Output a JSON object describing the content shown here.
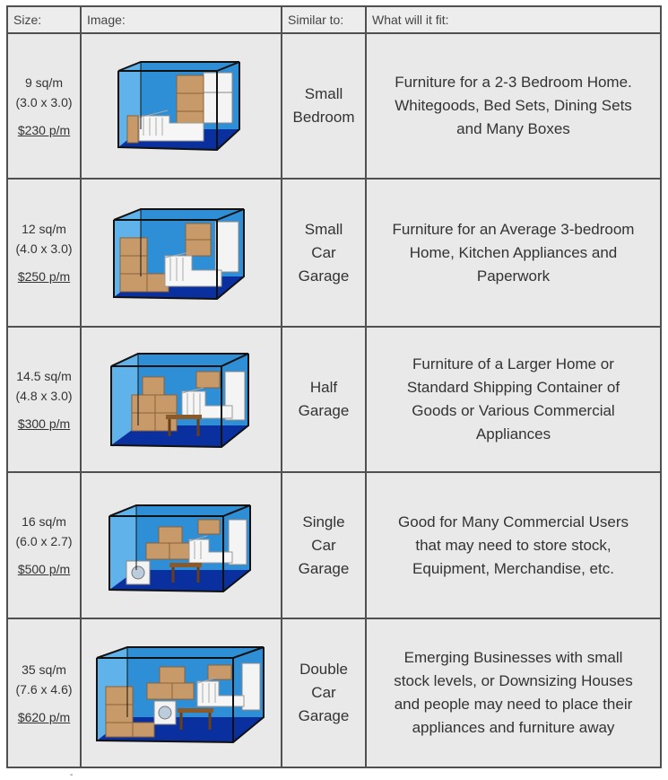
{
  "header": {
    "size": "Size:",
    "image": "Image:",
    "similar": "Similar to:",
    "fit": "What will it fit:"
  },
  "rows": [
    {
      "area": "9 sq/m",
      "dims": "(3.0 x 3.0)",
      "price": "$230 p/m",
      "similar": [
        "Small",
        "Bedroom"
      ],
      "fit": [
        "Furniture for a 2-3 Bedroom Home.",
        "Whitegoods, Bed Sets, Dining Sets",
        "and Many Boxes"
      ]
    },
    {
      "area": "12 sq/m",
      "dims": "(4.0 x 3.0)",
      "price": "$250 p/m",
      "similar": [
        "Small",
        "Car",
        "Garage"
      ],
      "fit": [
        "Furniture for an Average 3-bedroom",
        "Home, Kitchen Appliances and",
        "Paperwork"
      ]
    },
    {
      "area": "14.5 sq/m",
      "dims": "(4.8 x 3.0)",
      "price": "$300 p/m",
      "similar": [
        "Half",
        "Garage"
      ],
      "fit": [
        "Furniture of a Larger Home or",
        "Standard Shipping Container of",
        "Goods or Various Commercial",
        "Appliances"
      ]
    },
    {
      "area": "16 sq/m",
      "dims": "(6.0 x 2.7)",
      "price": "$500 p/m",
      "similar": [
        "Single",
        "Car",
        "Garage"
      ],
      "fit": [
        "Good for Many Commercial Users",
        "that may need to store stock,",
        "Equipment, Merchandise, etc."
      ]
    },
    {
      "area": "35 sq/m",
      "dims": "(7.6 x 4.6)",
      "price": "$620 p/m",
      "similar": [
        "Double",
        "Car",
        "Garage"
      ],
      "fit": [
        "Emerging Businesses with small",
        "stock levels, or Downsizing Houses",
        "and people may need to place their",
        "appliances and furniture away"
      ]
    }
  ],
  "colors": {
    "wall_back": "#2f8fd6",
    "wall_side": "#5fb3ea",
    "floor": "#0a2f9e",
    "box": "#c89a6a",
    "box_edge": "#8a6238",
    "frame": "#111111"
  },
  "footer": {
    "mark": "-"
  }
}
